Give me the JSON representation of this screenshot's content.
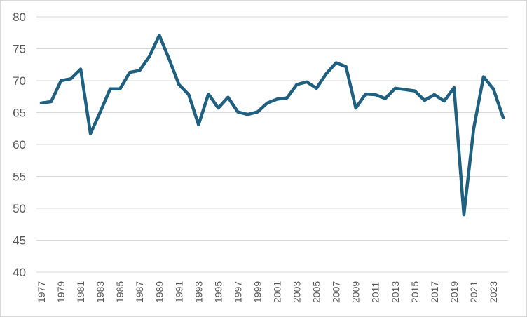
{
  "chart_data": {
    "type": "line",
    "title": "",
    "xlabel": "",
    "ylabel": "",
    "ylim": [
      40,
      80
    ],
    "y_ticks": [
      40,
      45,
      50,
      55,
      60,
      65,
      70,
      75,
      80
    ],
    "grid": "horizontal",
    "legend": "none",
    "x_tick_labels": [
      "1977",
      "1979",
      "1981",
      "1983",
      "1985",
      "1987",
      "1989",
      "1991",
      "1993",
      "1995",
      "1997",
      "1999",
      "2001",
      "2003",
      "2005",
      "2007",
      "2009",
      "2011",
      "2013",
      "2015",
      "2017",
      "2019",
      "2021",
      "2023"
    ],
    "series": [
      {
        "color": "#1f5f80",
        "x": [
          1977,
          1978,
          1979,
          1980,
          1981,
          1982,
          1983,
          1984,
          1985,
          1986,
          1987,
          1988,
          1989,
          1990,
          1991,
          1992,
          1993,
          1994,
          1995,
          1996,
          1997,
          1998,
          1999,
          2000,
          2001,
          2002,
          2003,
          2004,
          2005,
          2006,
          2007,
          2008,
          2009,
          2010,
          2011,
          2012,
          2013,
          2014,
          2015,
          2016,
          2017,
          2018,
          2019,
          2020,
          2021,
          2022,
          2023,
          2024
        ],
        "values": [
          66.5,
          66.7,
          70.0,
          70.3,
          71.8,
          61.7,
          65.1,
          68.7,
          68.7,
          71.3,
          71.6,
          73.8,
          77.1,
          73.4,
          69.4,
          67.8,
          63.1,
          67.9,
          65.7,
          67.4,
          65.1,
          64.7,
          65.1,
          66.5,
          67.1,
          67.3,
          69.4,
          69.8,
          68.8,
          71.1,
          72.8,
          72.2,
          65.7,
          67.9,
          67.8,
          67.2,
          68.8,
          68.6,
          68.4,
          66.9,
          67.8,
          66.8,
          68.9,
          49.0,
          62.5,
          70.6,
          68.7,
          64.2
        ]
      }
    ]
  }
}
